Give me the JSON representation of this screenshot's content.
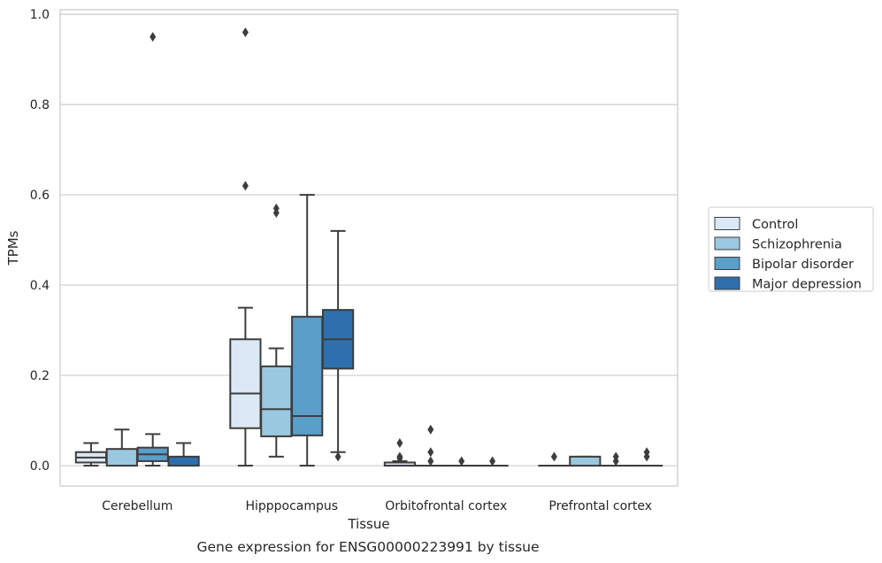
{
  "chart_data": {
    "type": "box",
    "title": "",
    "caption": "Gene expression for ENSG00000223991 by tissue",
    "xlabel": "Tissue",
    "ylabel": "TPMs",
    "ylim": [
      -0.045,
      1.01
    ],
    "yticks": [
      0.0,
      0.2,
      0.4,
      0.6,
      0.8,
      1.0
    ],
    "ytick_labels": [
      "0.0",
      "0.2",
      "0.4",
      "0.6",
      "0.8",
      "1.0"
    ],
    "grid": "horizontal",
    "legend_position": "right",
    "categories": [
      "Cerebellum",
      "Hipppocampus",
      "Orbitofrontal cortex",
      "Prefrontal cortex"
    ],
    "series": [
      {
        "name": "Control",
        "color": "#dbe9f6",
        "boxes": [
          {
            "whislo": 0.0,
            "q1": 0.007,
            "med": 0.018,
            "q3": 0.03,
            "whishi": 0.05,
            "fliers": []
          },
          {
            "whislo": 0.0,
            "q1": 0.083,
            "med": 0.16,
            "q3": 0.28,
            "whishi": 0.35,
            "fliers": [
              0.62,
              0.96
            ]
          },
          {
            "whislo": 0.0,
            "q1": 0.0,
            "med": 0.0,
            "q3": 0.007,
            "whishi": 0.01,
            "fliers": [
              0.016,
              0.02,
              0.05
            ]
          },
          {
            "whislo": 0.0,
            "q1": 0.0,
            "med": 0.0,
            "q3": 0.0,
            "whishi": 0.0,
            "fliers": [
              0.02
            ]
          }
        ]
      },
      {
        "name": "Schizophrenia",
        "color": "#9ac8e0",
        "boxes": [
          {
            "whislo": 0.0,
            "q1": 0.0,
            "med": 0.0,
            "q3": 0.037,
            "whishi": 0.08,
            "fliers": []
          },
          {
            "whislo": 0.02,
            "q1": 0.065,
            "med": 0.125,
            "q3": 0.22,
            "whishi": 0.26,
            "fliers": [
              0.56,
              0.57
            ]
          },
          {
            "whislo": 0.0,
            "q1": 0.0,
            "med": 0.0,
            "q3": 0.0,
            "whishi": 0.0,
            "fliers": [
              0.01,
              0.03,
              0.08
            ]
          },
          {
            "whislo": 0.0,
            "q1": 0.0,
            "med": 0.0,
            "q3": 0.02,
            "whishi": 0.02,
            "fliers": []
          }
        ]
      },
      {
        "name": "Bipolar disorder",
        "color": "#5a9ec9",
        "boxes": [
          {
            "whislo": 0.0,
            "q1": 0.01,
            "med": 0.025,
            "q3": 0.04,
            "whishi": 0.07,
            "fliers": [
              0.95
            ]
          },
          {
            "whislo": 0.0,
            "q1": 0.067,
            "med": 0.11,
            "q3": 0.33,
            "whishi": 0.6,
            "fliers": []
          },
          {
            "whislo": 0.0,
            "q1": 0.0,
            "med": 0.0,
            "q3": 0.0,
            "whishi": 0.0,
            "fliers": [
              0.01
            ]
          },
          {
            "whislo": 0.0,
            "q1": 0.0,
            "med": 0.0,
            "q3": 0.0,
            "whishi": 0.0,
            "fliers": [
              0.01,
              0.02
            ]
          }
        ]
      },
      {
        "name": "Major depression",
        "color": "#2e6fad",
        "boxes": [
          {
            "whislo": 0.0,
            "q1": 0.0,
            "med": 0.0,
            "q3": 0.02,
            "whishi": 0.05,
            "fliers": []
          },
          {
            "whislo": 0.03,
            "q1": 0.215,
            "med": 0.28,
            "q3": 0.345,
            "whishi": 0.52,
            "fliers": [
              0.02
            ]
          },
          {
            "whislo": 0.0,
            "q1": 0.0,
            "med": 0.0,
            "q3": 0.0,
            "whishi": 0.0,
            "fliers": [
              0.01
            ]
          },
          {
            "whislo": 0.0,
            "q1": 0.0,
            "med": 0.0,
            "q3": 0.0,
            "whishi": 0.0,
            "fliers": [
              0.02,
              0.03
            ]
          }
        ]
      }
    ]
  }
}
